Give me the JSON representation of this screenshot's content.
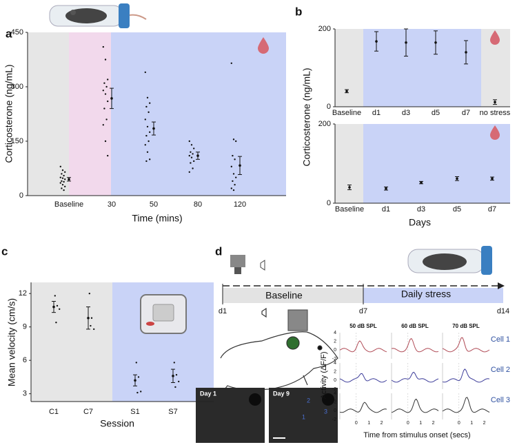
{
  "panels": {
    "a": "a",
    "b": "b",
    "c": "c",
    "d": "d"
  },
  "chart_data": [
    {
      "type": "dotplot",
      "categories": [
        "Baseline",
        "30",
        "50",
        "80",
        "120"
      ],
      "ylabel": "Corticosterone (ng/mL)",
      "xlabel": "Time (mins)",
      "ylim": [
        0,
        450
      ],
      "yticks": [
        0,
        150,
        300,
        450
      ],
      "points": [
        [
          80,
          70,
          65,
          60,
          55,
          50,
          48,
          45,
          40,
          38,
          35,
          30,
          25,
          20,
          15
        ],
        [
          410,
          375,
          320,
          310,
          300,
          290,
          280,
          260,
          240,
          210,
          195,
          150,
          110
        ],
        [
          340,
          270,
          255,
          245,
          230,
          210,
          190,
          175,
          165,
          150,
          140,
          120,
          100,
          95
        ],
        [
          150,
          140,
          130,
          120,
          115,
          110,
          105,
          95,
          90,
          75,
          65
        ],
        [
          365,
          155,
          150,
          110,
          100,
          80,
          60,
          50,
          40,
          30,
          20,
          15
        ]
      ],
      "means": [
        45,
        268,
        185,
        110,
        83
      ],
      "errors": [
        5,
        28,
        18,
        10,
        25
      ]
    },
    {
      "type": "dotplot",
      "categories": [
        "Baseline",
        "d1",
        "d3",
        "d5",
        "d7",
        "no stress"
      ],
      "ylabel": "Corticosterone (ng/mL)",
      "ylim": [
        0,
        200
      ],
      "yticks": [
        0,
        200
      ],
      "means": [
        40,
        168,
        165,
        165,
        140,
        12
      ],
      "errors": [
        4,
        25,
        35,
        30,
        30,
        6
      ]
    },
    {
      "type": "dotplot",
      "categories": [
        "Baseline",
        "d1",
        "d3",
        "d5",
        "d7"
      ],
      "xlabel": "Days",
      "ylim": [
        0,
        200
      ],
      "yticks": [
        0,
        200
      ],
      "means": [
        40,
        37,
        52,
        62,
        62
      ],
      "errors": [
        6,
        4,
        3,
        5,
        4
      ]
    },
    {
      "type": "dotplot",
      "categories": [
        "C1",
        "C7",
        "S1",
        "S7"
      ],
      "ylabel": "Mean velocity (cm/s)",
      "xlabel": "Session",
      "ylim": [
        2.3,
        13
      ],
      "yticks": [
        3,
        6,
        9,
        12
      ],
      "points": [
        [
          11.8,
          10.9,
          10.6,
          9.4
        ],
        [
          12,
          9.8,
          8.8,
          9.1
        ],
        [
          5.8,
          4.5,
          3.2,
          3.1
        ],
        [
          5.8,
          4.7,
          4.1,
          3.6
        ]
      ],
      "means": [
        10.8,
        9.8,
        4.2,
        4.6
      ],
      "errors": [
        0.5,
        1.0,
        0.5,
        0.6
      ]
    }
  ],
  "timeline": {
    "start": "d1",
    "mid": "d7",
    "end": "d14",
    "phase1": "Baseline",
    "phase2": "Daily stress"
  },
  "images": {
    "day1": "Day 1",
    "day9": "Day 9",
    "cells": [
      "1",
      "2",
      "3"
    ]
  },
  "traces": {
    "columns": [
      "50 dB SPL",
      "60 dB SPL",
      "70 dB SPL"
    ],
    "rows": [
      "Cell 1",
      "Cell 2",
      "Cell 3"
    ],
    "ylabel": "Activity (ΔF/F)",
    "xlabel": "Time from stimulus onset (secs)",
    "yticks": [
      4,
      2,
      0,
      -2
    ],
    "xticks": [
      0,
      1,
      2
    ]
  }
}
